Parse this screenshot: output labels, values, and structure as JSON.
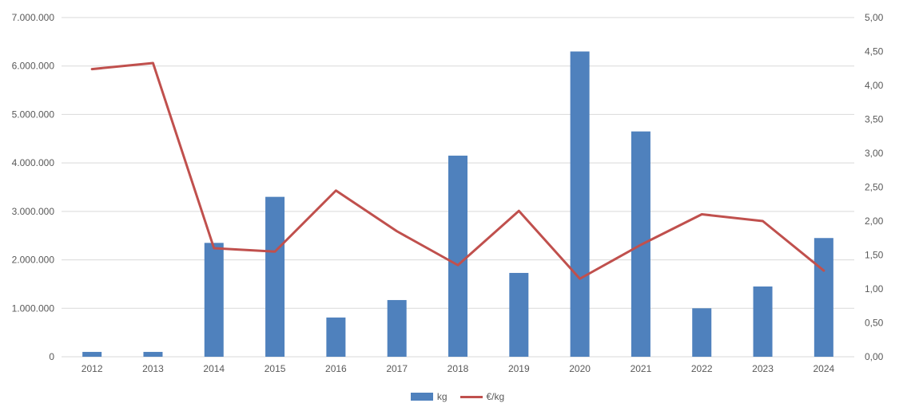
{
  "chart_data": {
    "type": "combo-bar-line",
    "title": "",
    "categories": [
      "2012",
      "2013",
      "2014",
      "2015",
      "2016",
      "2017",
      "2018",
      "2019",
      "2020",
      "2021",
      "2022",
      "2023",
      "2024"
    ],
    "series": [
      {
        "name": "kg",
        "type": "bar",
        "axis": "left",
        "color": "#4F81BD",
        "values": [
          100000,
          100000,
          2350000,
          3300000,
          810000,
          1170000,
          4150000,
          1730000,
          6300000,
          4650000,
          1000000,
          1450000,
          2450000
        ]
      },
      {
        "name": "€/kg",
        "type": "line",
        "axis": "right",
        "color": "#C0504D",
        "values": [
          4.24,
          4.33,
          1.6,
          1.55,
          2.45,
          1.85,
          1.35,
          2.15,
          1.15,
          1.65,
          2.1,
          2.0,
          1.27
        ]
      }
    ],
    "y_left": {
      "min": 0,
      "max": 7000000,
      "tick_labels": [
        "0",
        "1.000.000",
        "2.000.000",
        "3.000.000",
        "4.000.000",
        "5.000.000",
        "6.000.000",
        "7.000.000"
      ]
    },
    "y_right": {
      "min": 0,
      "max": 5,
      "tick_labels": [
        "0,00",
        "0,50",
        "1,00",
        "1,50",
        "2,00",
        "2,50",
        "3,00",
        "3,50",
        "4,00",
        "4,50",
        "5,00"
      ]
    },
    "grid": true,
    "legend_position": "bottom",
    "colors": {
      "bar": "#4F81BD",
      "line": "#C0504D",
      "gridline": "#D9D9D9",
      "axis_text": "#595959",
      "background": "#FFFFFF"
    }
  }
}
